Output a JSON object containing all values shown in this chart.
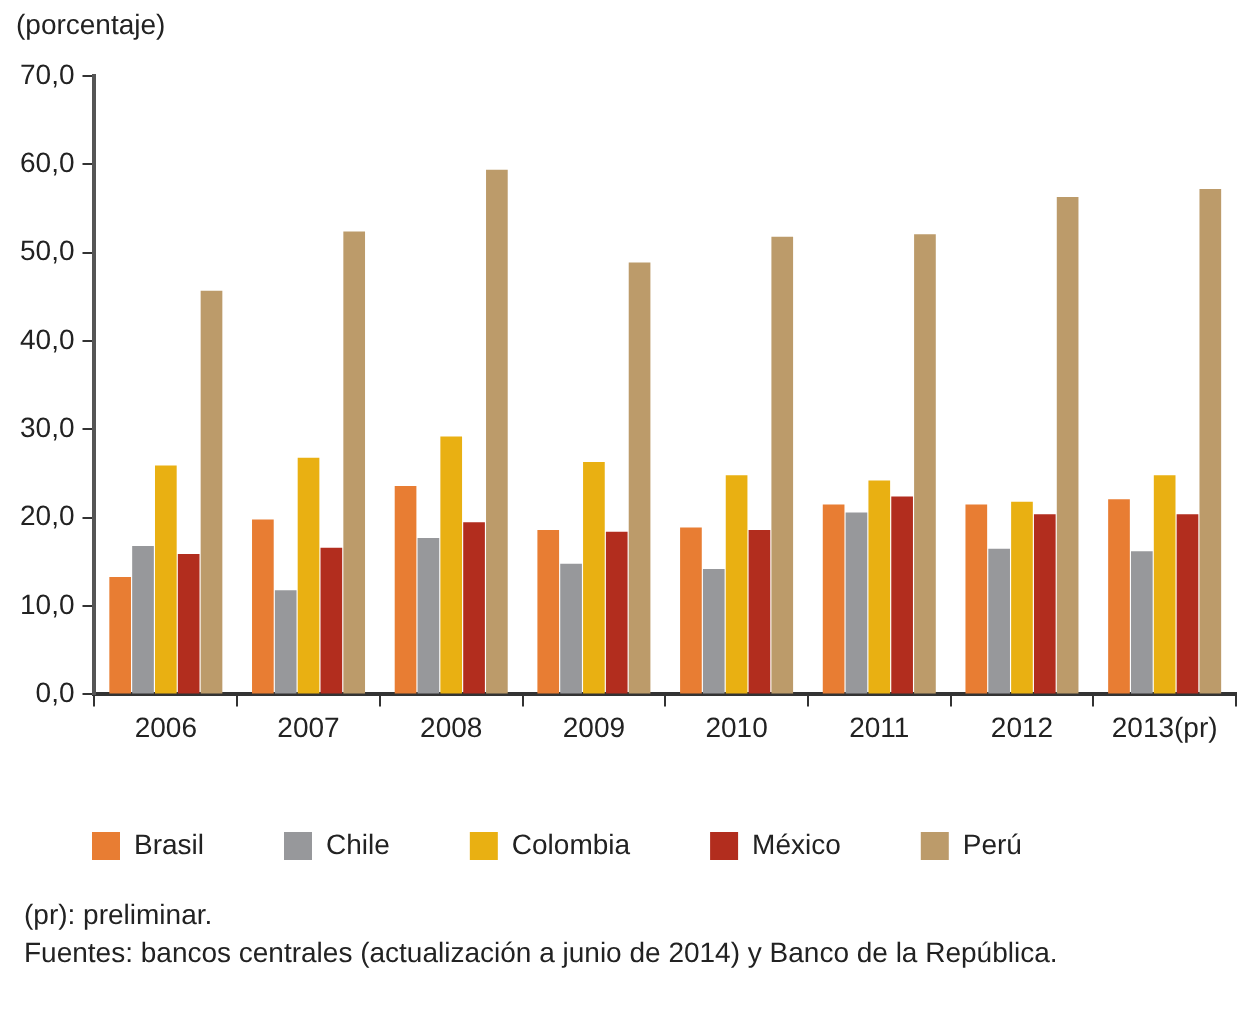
{
  "chart_data": {
    "type": "bar",
    "ylabel": "(porcentaje)",
    "categories": [
      "2006",
      "2007",
      "2008",
      "2009",
      "2010",
      "2011",
      "2012",
      "2013(pr)"
    ],
    "series": [
      {
        "name": "Brasil",
        "color": "#e87d33",
        "values": [
          13.3,
          19.8,
          23.6,
          18.6,
          18.9,
          21.5,
          21.5,
          22.1
        ]
      },
      {
        "name": "Chile",
        "color": "#97989b",
        "values": [
          16.8,
          11.8,
          17.7,
          14.8,
          14.2,
          20.6,
          16.5,
          16.2
        ]
      },
      {
        "name": "Colombia",
        "color": "#e9b012",
        "values": [
          25.9,
          26.8,
          29.2,
          26.3,
          24.8,
          24.2,
          21.8,
          24.8
        ]
      },
      {
        "name": "México",
        "color": "#b22d1e",
        "values": [
          15.9,
          16.6,
          19.5,
          18.4,
          18.6,
          22.4,
          20.4,
          20.4
        ]
      },
      {
        "name": "Perú",
        "color": "#bc9b6a",
        "values": [
          45.7,
          52.4,
          59.4,
          48.9,
          51.8,
          52.1,
          56.3,
          57.2
        ]
      }
    ],
    "ylim": [
      0,
      70
    ],
    "yticks": [
      {
        "value": 0,
        "label": "0,0"
      },
      {
        "value": 10,
        "label": "10,0"
      },
      {
        "value": 20,
        "label": "20,0"
      },
      {
        "value": 30,
        "label": "30,0"
      },
      {
        "value": 40,
        "label": "40,0"
      },
      {
        "value": 50,
        "label": "50,0"
      },
      {
        "value": 60,
        "label": "60,0"
      },
      {
        "value": 70,
        "label": "70,0"
      }
    ],
    "legend": "bottom",
    "annotations": [
      "(pr): preliminar.",
      "Fuentes: bancos centrales (actualización a junio de 2014) y Banco de la República."
    ]
  }
}
